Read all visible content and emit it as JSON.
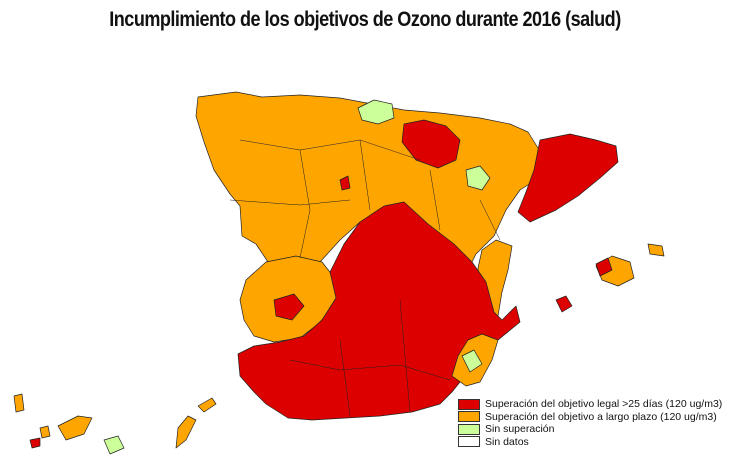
{
  "title": "Incumplimiento de los objetivos de Ozono durante 2016 (salud)",
  "colors": {
    "exceed_legal": "#dd0000",
    "exceed_long_term": "#ffa500",
    "no_exceedance": "#ccff99",
    "no_data": "#ffffff",
    "border": "#222222"
  },
  "legend": [
    {
      "label": "Superación del objetivo legal >25 días (120 ug/m3)",
      "color": "#dd0000"
    },
    {
      "label": "Superación del objetivo a largo plazo (120 ug/m3)",
      "color": "#ffa500"
    },
    {
      "label": "Sin superación",
      "color": "#ccff99"
    },
    {
      "label": "Sin datos",
      "color": "#ffffff"
    }
  ]
}
